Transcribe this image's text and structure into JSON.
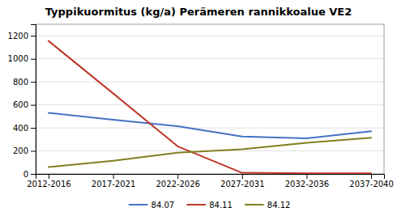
{
  "chart_data": {
    "type": "line",
    "title": "Typpikuormitus (kg/a) Perämeren rannikkoalue VE2",
    "categories": [
      "2012-2016",
      "2017-2021",
      "2022-2026",
      "2027-2031",
      "2032-2036",
      "2037-2040"
    ],
    "series": [
      {
        "name": "84.07",
        "color": "#4472C4",
        "values": [
          530,
          470,
          415,
          325,
          310,
          370
        ]
      },
      {
        "name": "84.11",
        "color": "#C0392B",
        "values": [
          1155,
          700,
          240,
          10,
          5,
          5
        ]
      },
      {
        "name": "84.12",
        "color": "#808020",
        "values": [
          60,
          115,
          185,
          215,
          270,
          315
        ]
      }
    ],
    "ylim": [
      0,
      1300
    ],
    "yticks": [
      0,
      200,
      400,
      600,
      800,
      1000,
      1200
    ],
    "grid": true,
    "legend": "bottom"
  }
}
